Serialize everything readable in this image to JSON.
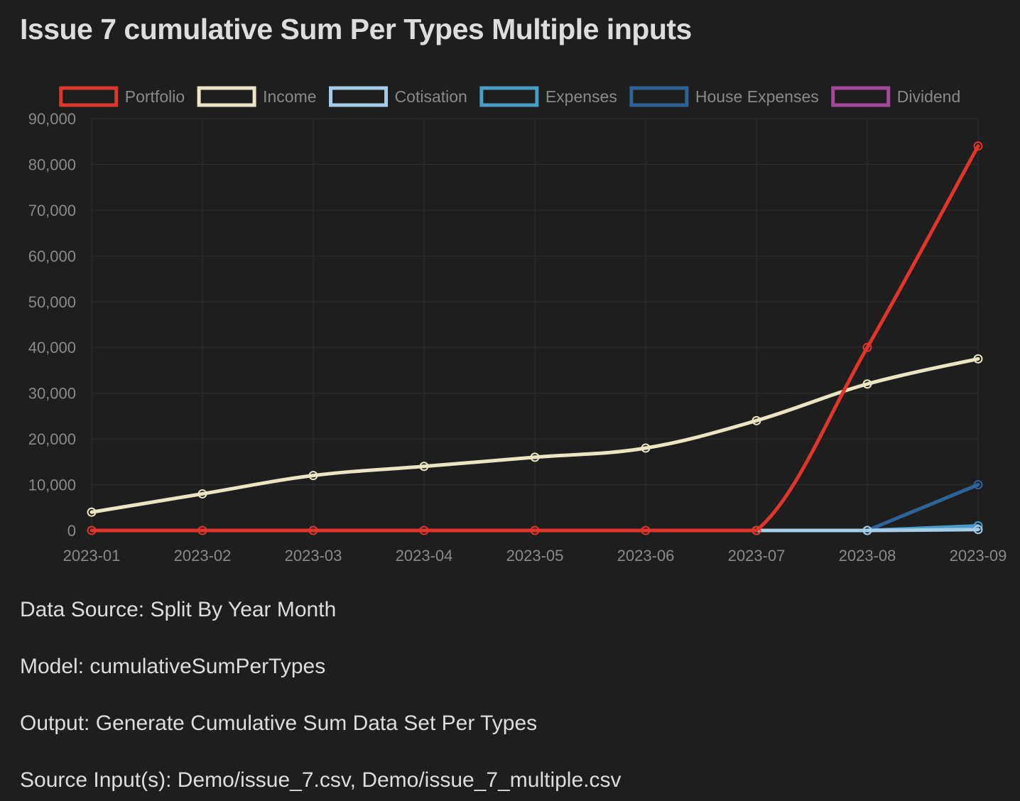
{
  "page": {
    "title": "Issue 7 cumulative Sum Per Types Multiple inputs",
    "info": [
      {
        "label": "Data Source:",
        "value": "Split By Year Month"
      },
      {
        "label": "Model:",
        "value": "cumulativeSumPerTypes"
      },
      {
        "label": "Output:",
        "value": "Generate Cumulative Sum Data Set Per Types"
      },
      {
        "label": "Source Input(s):",
        "value": "Demo/issue_7.csv, Demo/issue_7_multiple.csv"
      }
    ]
  },
  "colors": {
    "background": "#1e1e1e",
    "text": "#dcddde",
    "axis_text": "#8a8a8a",
    "grid": "#2c2c2c"
  },
  "chart_data": {
    "type": "line",
    "title": "",
    "xlabel": "",
    "ylabel": "",
    "x": [
      "2023-01",
      "2023-02",
      "2023-03",
      "2023-04",
      "2023-05",
      "2023-06",
      "2023-07",
      "2023-08",
      "2023-09"
    ],
    "ylim": [
      0,
      90000
    ],
    "yticks": [
      0,
      10000,
      20000,
      30000,
      40000,
      50000,
      60000,
      70000,
      80000,
      90000
    ],
    "ytick_labels": [
      "0",
      "10,000",
      "20,000",
      "30,000",
      "40,000",
      "50,000",
      "60,000",
      "70,000",
      "80,000",
      "90,000"
    ],
    "grid": true,
    "legend_position": "top",
    "series": [
      {
        "name": "Portfolio",
        "color": "#e0352b",
        "values": [
          0,
          0,
          0,
          0,
          0,
          0,
          0,
          40000,
          84000
        ]
      },
      {
        "name": "Income",
        "color": "#ebe5c4",
        "values": [
          4000,
          8000,
          12000,
          14000,
          16000,
          18000,
          24000,
          32000,
          37500
        ]
      },
      {
        "name": "Cotisation",
        "color": "#a6cde8",
        "values": [
          null,
          null,
          null,
          null,
          null,
          null,
          0,
          0,
          200
        ]
      },
      {
        "name": "Expenses",
        "color": "#4a9cc7",
        "values": [
          null,
          null,
          null,
          null,
          null,
          null,
          null,
          0,
          1000
        ]
      },
      {
        "name": "House Expenses",
        "color": "#2e6397",
        "values": [
          null,
          null,
          null,
          null,
          null,
          null,
          null,
          0,
          10000
        ]
      },
      {
        "name": "Dividend",
        "color": "#a6479e",
        "values": [
          null,
          null,
          null,
          null,
          null,
          null,
          null,
          null,
          null
        ]
      }
    ]
  }
}
